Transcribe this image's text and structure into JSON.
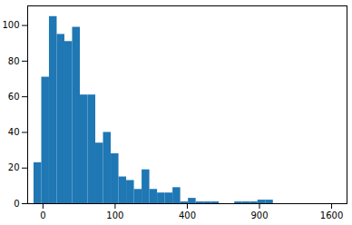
{
  "chart_data": {
    "type": "histogram",
    "bins": [
      -1.56,
      -0.03,
      0.79,
      3.84,
      9.18,
      16.81,
      26.73,
      38.94,
      53.44,
      70.22,
      89.3,
      110.67,
      134.33,
      160.28,
      188.51,
      219.04,
      251.86,
      286.96,
      324.36,
      364.05,
      406.02,
      450.29,
      496.84,
      545.69,
      596.82,
      650.25,
      705.96,
      763.97,
      824.26,
      886.85,
      951.72,
      1018.89
    ],
    "values": [
      23,
      71,
      105,
      95,
      91,
      99,
      61,
      61,
      34,
      40,
      28,
      15,
      13,
      8,
      19,
      8,
      6,
      6,
      9,
      1,
      3,
      1,
      1,
      1,
      0,
      0,
      1,
      1,
      1,
      2,
      2
    ],
    "color": "#1f77b4",
    "xlim": [
      -4.5,
      1775
    ],
    "xticks": [
      0,
      100,
      400,
      900,
      1600
    ],
    "ylim": [
      0,
      111
    ],
    "yticks": [
      0,
      20,
      40,
      60,
      80,
      100
    ],
    "grid": false
  }
}
